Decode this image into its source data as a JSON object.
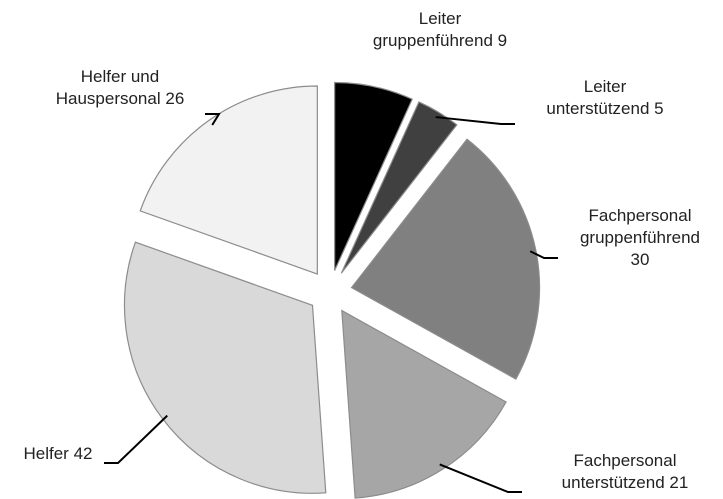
{
  "chart_data": {
    "type": "pie",
    "categories": [
      "Leiter gruppenführend",
      "Leiter unterstützend",
      "Fachpersonal gruppenführend",
      "Fachpersonal unterstützend",
      "Helfer",
      "Helfer und Hauspersonal"
    ],
    "values": [
      9,
      5,
      30,
      21,
      42,
      26
    ],
    "colors": [
      "#000000",
      "#404040",
      "#808080",
      "#a6a6a6",
      "#d9d9d9",
      "#f2f2f2"
    ],
    "exploded": true
  }
}
